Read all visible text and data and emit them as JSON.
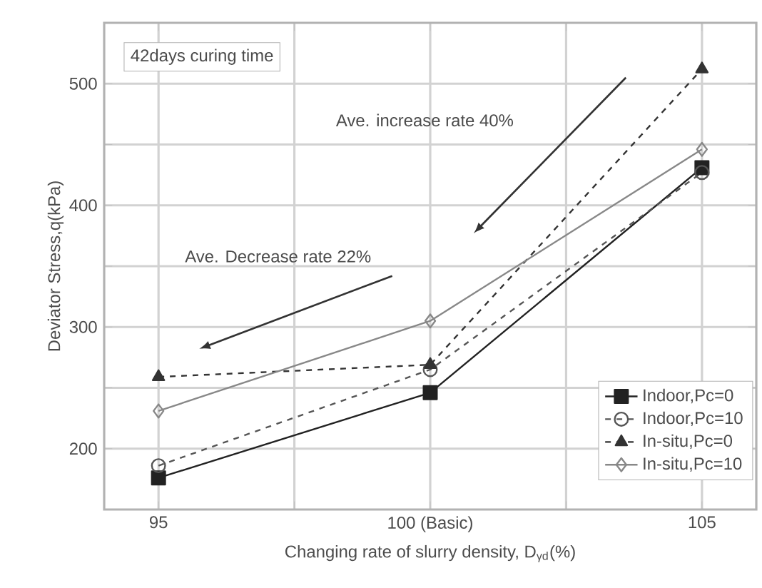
{
  "chart_data": {
    "type": "line",
    "xlabel": "Changing rate of slurry density, D$_{γd}$(%)",
    "ylabel": "Deviator Stress,q(kPa)",
    "x": [
      95,
      100,
      105
    ],
    "series": [
      {
        "name": "Indoor,Pc=0",
        "color": "#222222",
        "values": [
          176,
          246,
          431
        ],
        "marker": "square",
        "line_style": "solid"
      },
      {
        "name": "Indoor,Pc=10",
        "color": "#555555",
        "values": [
          186,
          265,
          427
        ],
        "marker": "circle",
        "line_style": "dashed"
      },
      {
        "name": "In-situ,Pc=0",
        "color": "#333333",
        "values": [
          259,
          269,
          512
        ],
        "marker": "triangle",
        "line_style": "dashed"
      },
      {
        "name": "In-situ,Pc=10",
        "color": "#888888",
        "values": [
          231,
          305,
          446
        ],
        "marker": "diamond",
        "line_style": "solid"
      }
    ],
    "xlim": [
      94,
      106
    ],
    "ylim": [
      150,
      550
    ],
    "xticks": [
      95,
      {
        "value": 97.5,
        "label": null
      },
      {
        "value": 100,
        "label": "100 (Basic)"
      },
      {
        "value": 102.5,
        "label": null
      },
      105
    ],
    "yticks": [
      200,
      {
        "value": 250,
        "label": null
      },
      300,
      {
        "value": 350,
        "label": null
      },
      400,
      {
        "value": 450,
        "label": null
      },
      500
    ],
    "grid": true,
    "legend": "bottom right",
    "annotations": [
      "42days curing time",
      "Ave. increase rate 40%",
      "Ave. Decrease rate 22%"
    ]
  }
}
